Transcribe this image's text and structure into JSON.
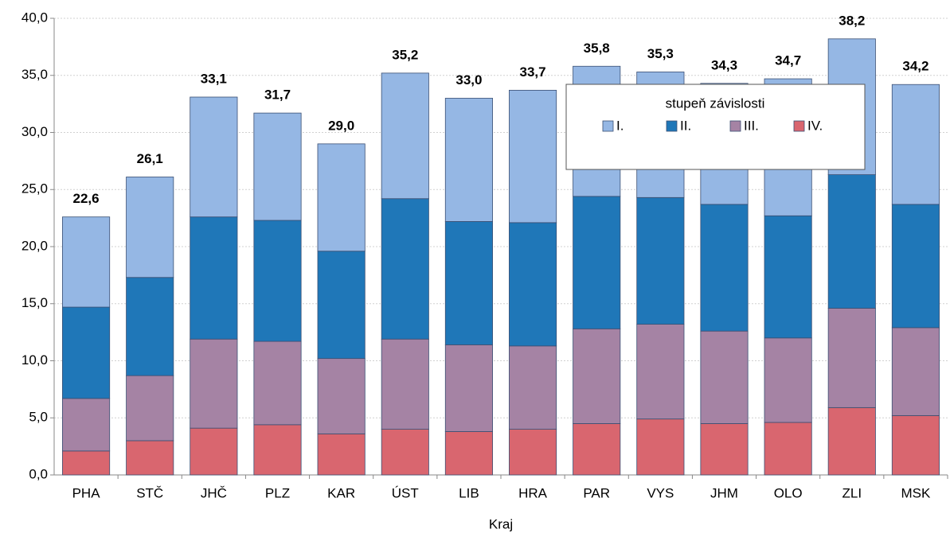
{
  "chart_data": {
    "type": "stacked_bar",
    "x_label": "Kraj",
    "categories": [
      "PHA",
      "STČ",
      "JHČ",
      "PLZ",
      "KAR",
      "ÚST",
      "LIB",
      "HRA",
      "PAR",
      "VYS",
      "JHM",
      "OLO",
      "ZLI",
      "MSK"
    ],
    "legend_title": "stupeň závislosti",
    "series": [
      {
        "name": "I.",
        "color": "#95b7e4",
        "values": [
          7.9,
          8.8,
          10.5,
          9.4,
          9.4,
          11.0,
          10.8,
          11.6,
          11.4,
          11.0,
          10.6,
          12.0,
          11.9,
          10.5
        ]
      },
      {
        "name": "II.",
        "color": "#1f77b8",
        "values": [
          8.0,
          8.6,
          10.7,
          10.6,
          9.4,
          12.3,
          10.8,
          10.8,
          11.6,
          11.1,
          11.1,
          10.7,
          11.7,
          10.8
        ]
      },
      {
        "name": "III.",
        "color": "#a583a4",
        "values": [
          4.6,
          5.7,
          7.8,
          7.3,
          6.6,
          7.9,
          7.6,
          7.3,
          8.3,
          8.3,
          8.1,
          7.4,
          8.7,
          7.7
        ]
      },
      {
        "name": "IV.",
        "color": "#d9666f",
        "values": [
          2.1,
          3.0,
          4.1,
          4.4,
          3.6,
          4.0,
          3.8,
          4.0,
          4.5,
          4.9,
          4.5,
          4.6,
          5.9,
          5.2
        ]
      }
    ],
    "totals": [
      22.6,
      26.1,
      33.1,
      31.7,
      29.0,
      35.2,
      33.0,
      33.7,
      35.8,
      35.3,
      34.3,
      34.7,
      38.2,
      34.2
    ],
    "total_labels": [
      "22,6",
      "26,1",
      "33,1",
      "31,7",
      "29,0",
      "35,2",
      "33,0",
      "33,7",
      "35,8",
      "35,3",
      "34,3",
      "34,7",
      "38,2",
      "34,2"
    ],
    "ylim": [
      0,
      40
    ],
    "yticks": [
      {
        "value": 0,
        "label": "0,0"
      },
      {
        "value": 5,
        "label": "5,0"
      },
      {
        "value": 10,
        "label": "10,0"
      },
      {
        "value": 15,
        "label": "15,0"
      },
      {
        "value": 20,
        "label": "20,0"
      },
      {
        "value": 25,
        "label": "25,0"
      },
      {
        "value": 30,
        "label": "30,0"
      },
      {
        "value": 35,
        "label": "35,0"
      },
      {
        "value": 40,
        "label": "40,0"
      }
    ],
    "grid": true
  }
}
